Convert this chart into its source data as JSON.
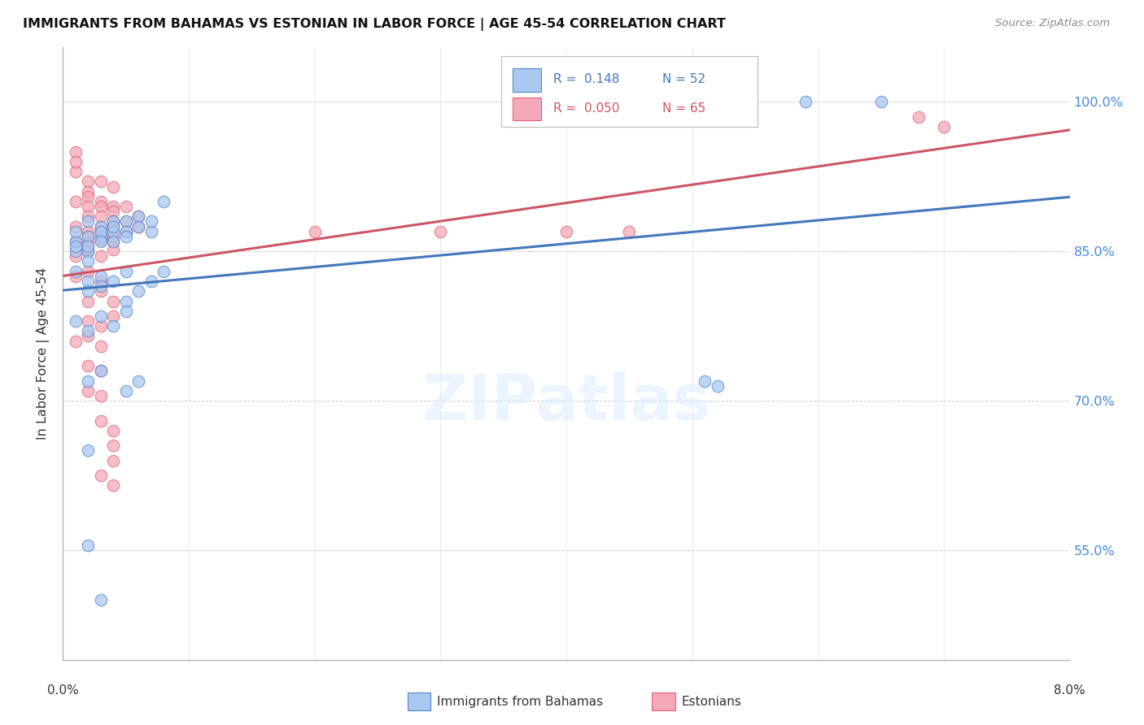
{
  "title": "IMMIGRANTS FROM BAHAMAS VS ESTONIAN IN LABOR FORCE | AGE 45-54 CORRELATION CHART",
  "source": "Source: ZipAtlas.com",
  "ylabel": "In Labor Force | Age 45-54",
  "yticks": [
    0.55,
    0.7,
    0.85,
    1.0
  ],
  "ytick_labels": [
    "55.0%",
    "70.0%",
    "85.0%",
    "100.0%"
  ],
  "xmin": 0.0,
  "xmax": 0.08,
  "ymin": 0.44,
  "ymax": 1.055,
  "blue_r": "0.148",
  "blue_n": "52",
  "pink_r": "0.050",
  "pink_n": "65",
  "blue_color": "#A8C8F0",
  "pink_color": "#F4A8B8",
  "blue_edge_color": "#5588CC",
  "pink_edge_color": "#DD6677",
  "blue_line_color": "#4477BB",
  "pink_line_color": "#CC5566",
  "blue_scatter": [
    [
      0.001,
      0.85
    ],
    [
      0.001,
      0.86
    ],
    [
      0.001,
      0.87
    ],
    [
      0.001,
      0.855
    ],
    [
      0.002,
      0.865
    ],
    [
      0.002,
      0.88
    ],
    [
      0.002,
      0.85
    ],
    [
      0.002,
      0.84
    ],
    [
      0.002,
      0.855
    ],
    [
      0.003,
      0.875
    ],
    [
      0.003,
      0.865
    ],
    [
      0.003,
      0.87
    ],
    [
      0.003,
      0.86
    ],
    [
      0.004,
      0.88
    ],
    [
      0.004,
      0.87
    ],
    [
      0.004,
      0.86
    ],
    [
      0.004,
      0.875
    ],
    [
      0.005,
      0.88
    ],
    [
      0.005,
      0.87
    ],
    [
      0.005,
      0.865
    ],
    [
      0.006,
      0.885
    ],
    [
      0.006,
      0.875
    ],
    [
      0.007,
      0.87
    ],
    [
      0.007,
      0.88
    ],
    [
      0.008,
      0.9
    ],
    [
      0.001,
      0.83
    ],
    [
      0.002,
      0.82
    ],
    [
      0.002,
      0.81
    ],
    [
      0.003,
      0.825
    ],
    [
      0.003,
      0.815
    ],
    [
      0.004,
      0.82
    ],
    [
      0.005,
      0.83
    ],
    [
      0.005,
      0.8
    ],
    [
      0.006,
      0.81
    ],
    [
      0.007,
      0.82
    ],
    [
      0.008,
      0.83
    ],
    [
      0.001,
      0.78
    ],
    [
      0.002,
      0.77
    ],
    [
      0.003,
      0.785
    ],
    [
      0.004,
      0.775
    ],
    [
      0.005,
      0.79
    ],
    [
      0.002,
      0.72
    ],
    [
      0.003,
      0.73
    ],
    [
      0.005,
      0.71
    ],
    [
      0.006,
      0.72
    ],
    [
      0.002,
      0.65
    ],
    [
      0.002,
      0.555
    ],
    [
      0.003,
      0.5
    ],
    [
      0.059,
      1.0
    ],
    [
      0.065,
      1.0
    ],
    [
      0.051,
      0.72
    ],
    [
      0.052,
      0.715
    ]
  ],
  "pink_scatter": [
    [
      0.001,
      0.93
    ],
    [
      0.001,
      0.95
    ],
    [
      0.002,
      0.92
    ],
    [
      0.001,
      0.94
    ],
    [
      0.002,
      0.91
    ],
    [
      0.002,
      0.905
    ],
    [
      0.003,
      0.92
    ],
    [
      0.003,
      0.9
    ],
    [
      0.004,
      0.915
    ],
    [
      0.004,
      0.895
    ],
    [
      0.001,
      0.9
    ],
    [
      0.002,
      0.895
    ],
    [
      0.002,
      0.885
    ],
    [
      0.003,
      0.895
    ],
    [
      0.003,
      0.885
    ],
    [
      0.004,
      0.89
    ],
    [
      0.004,
      0.88
    ],
    [
      0.005,
      0.895
    ],
    [
      0.005,
      0.88
    ],
    [
      0.006,
      0.885
    ],
    [
      0.001,
      0.875
    ],
    [
      0.002,
      0.87
    ],
    [
      0.002,
      0.865
    ],
    [
      0.003,
      0.875
    ],
    [
      0.003,
      0.87
    ],
    [
      0.004,
      0.875
    ],
    [
      0.004,
      0.865
    ],
    [
      0.005,
      0.87
    ],
    [
      0.006,
      0.875
    ],
    [
      0.001,
      0.86
    ],
    [
      0.002,
      0.858
    ],
    [
      0.003,
      0.862
    ],
    [
      0.004,
      0.86
    ],
    [
      0.001,
      0.845
    ],
    [
      0.002,
      0.85
    ],
    [
      0.003,
      0.845
    ],
    [
      0.004,
      0.852
    ],
    [
      0.001,
      0.825
    ],
    [
      0.002,
      0.83
    ],
    [
      0.003,
      0.82
    ],
    [
      0.002,
      0.8
    ],
    [
      0.003,
      0.81
    ],
    [
      0.004,
      0.8
    ],
    [
      0.002,
      0.78
    ],
    [
      0.003,
      0.775
    ],
    [
      0.004,
      0.785
    ],
    [
      0.001,
      0.76
    ],
    [
      0.002,
      0.765
    ],
    [
      0.003,
      0.755
    ],
    [
      0.002,
      0.735
    ],
    [
      0.003,
      0.73
    ],
    [
      0.002,
      0.71
    ],
    [
      0.003,
      0.705
    ],
    [
      0.003,
      0.68
    ],
    [
      0.004,
      0.67
    ],
    [
      0.004,
      0.655
    ],
    [
      0.004,
      0.64
    ],
    [
      0.003,
      0.625
    ],
    [
      0.004,
      0.615
    ],
    [
      0.02,
      0.87
    ],
    [
      0.03,
      0.87
    ],
    [
      0.04,
      0.87
    ],
    [
      0.045,
      0.87
    ],
    [
      0.07,
      0.975
    ],
    [
      0.068,
      0.985
    ]
  ],
  "watermark": "ZIPatlas",
  "background_color": "#FFFFFF"
}
